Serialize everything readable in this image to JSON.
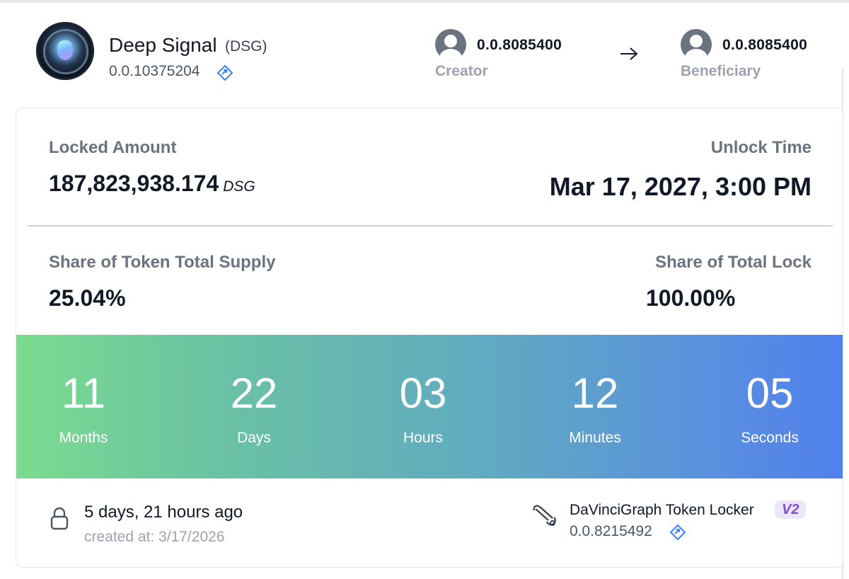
{
  "token": {
    "name": "Deep Signal",
    "symbol": "(DSG)",
    "id": "0.0.10375204",
    "logo_icon": "token-logo-orb"
  },
  "transfer": {
    "creator_account": "0.0.8085400",
    "creator_label": "Creator",
    "beneficiary_account": "0.0.8085400",
    "beneficiary_label": "Beneficiary",
    "arrow_icon": "arrow-right-icon"
  },
  "lock": {
    "locked_amount_label": "Locked Amount",
    "locked_amount_value": "187,823,938.174",
    "locked_amount_unit": "DSG",
    "unlock_time_label": "Unlock Time",
    "unlock_time_value": "Mar 17, 2027, 3:00 PM",
    "supply_share_label": "Share of Token Total Supply",
    "supply_share_value": "25.04%",
    "lock_share_label": "Share of Total Lock",
    "lock_share_value": "100.00%"
  },
  "countdown": [
    {
      "value": "11",
      "unit": "Months"
    },
    {
      "value": "22",
      "unit": "Days"
    },
    {
      "value": "03",
      "unit": "Hours"
    },
    {
      "value": "12",
      "unit": "Minutes"
    },
    {
      "value": "05",
      "unit": "Seconds"
    }
  ],
  "footer": {
    "created_relative": "5 days, 21 hours ago",
    "created_at": "created at: 3/17/2026",
    "locker_name": "DaVinciGraph Token Locker",
    "locker_version": "V2",
    "locker_id": "0.0.8215492"
  },
  "colors": {
    "gradient_start": "#7bdc8f",
    "gradient_end": "#5080ee",
    "badge_bg": "#ede5fb",
    "badge_text": "#7e4fd6",
    "link_icon": "#3b82f6"
  }
}
